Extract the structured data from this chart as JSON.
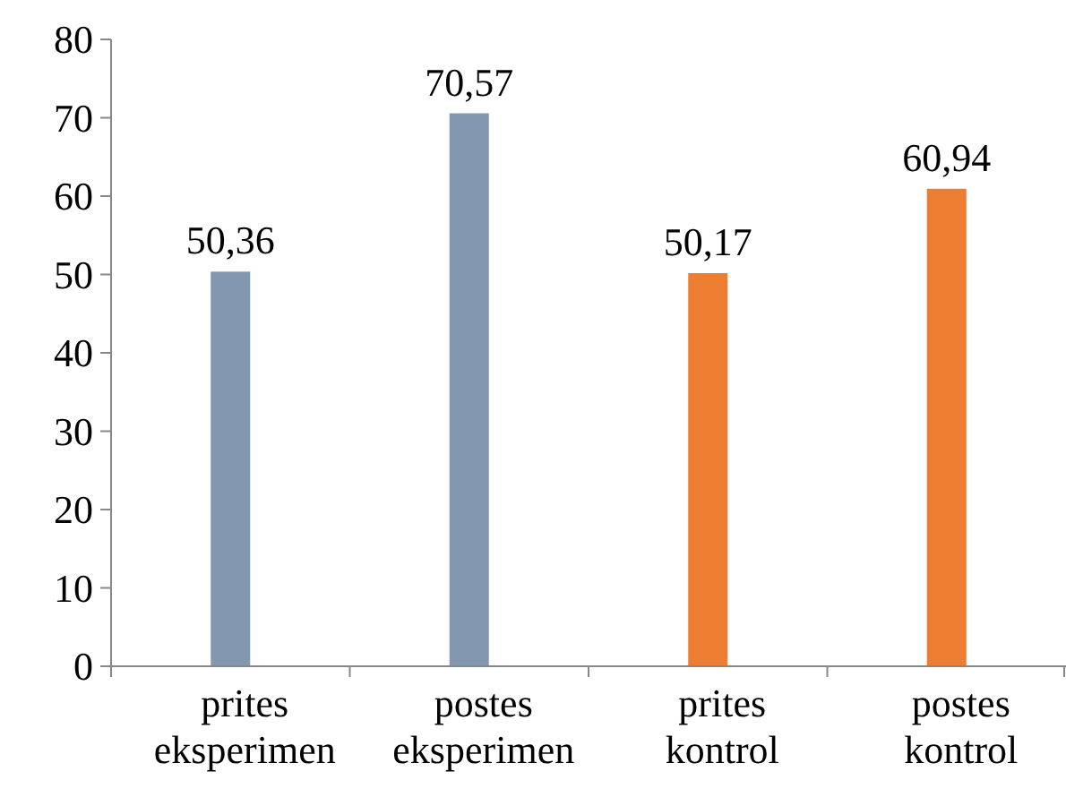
{
  "chart_data": {
    "type": "bar",
    "categories": [
      "prites eksperimen",
      "postes eksperimen",
      "prites kontrol",
      "postes kontrol"
    ],
    "values": [
      50.36,
      70.57,
      50.17,
      60.94
    ],
    "colors": [
      "#8497b0",
      "#8497b0",
      "#ed7d31",
      "#ed7d31"
    ],
    "value_labels": [
      "50,36",
      "70,57",
      "50,17",
      "60,94"
    ],
    "ylim": [
      0,
      80
    ],
    "yticks": [
      0,
      10,
      20,
      30,
      40,
      50,
      60,
      70,
      80
    ]
  }
}
